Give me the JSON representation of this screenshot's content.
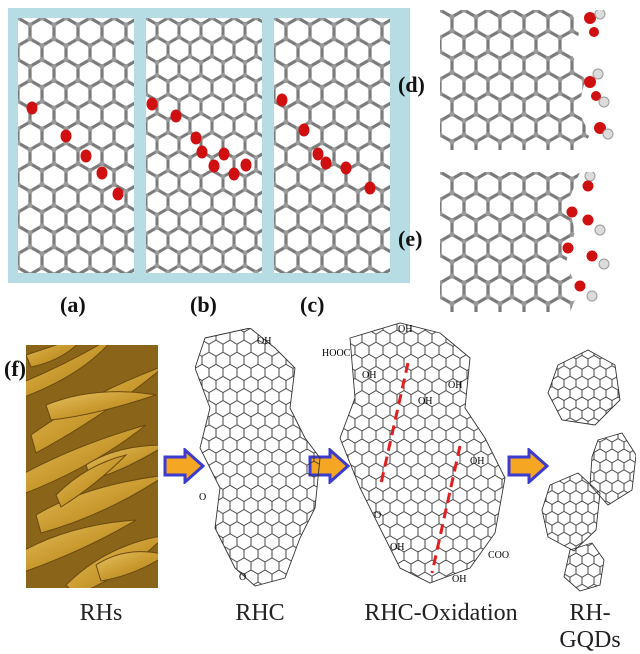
{
  "figure": {
    "panel_labels": [
      "(a)",
      "(b)",
      "(c)",
      "(d)",
      "(e)",
      "(f)"
    ],
    "chemistry": {
      "hydroxyl": "OH",
      "carboxyl": "COOH",
      "carboxyl_left": "HOOC",
      "oxygen": "O"
    },
    "pipeline": [
      {
        "id": "rhs",
        "label": "RHs"
      },
      {
        "id": "rhc",
        "label": "RHC"
      },
      {
        "id": "rhc-oxidation",
        "label": "RHC-Oxidation"
      },
      {
        "id": "rh-gqds",
        "label": "RH-GQDs"
      }
    ],
    "colors": {
      "frame": "#b6dde3",
      "carbon": "#8a8a8a",
      "oxygen": "#d01010",
      "hydrogen": "#e8e8e8",
      "arrow_fill": "#f5a623",
      "arrow_outline": "#3b3bd0",
      "cut_line": "#e02020",
      "husk": "#d9b04a"
    },
    "icons": [
      "process-arrow-icon",
      "graphene-lattice-icon",
      "rice-husk-image"
    ]
  }
}
